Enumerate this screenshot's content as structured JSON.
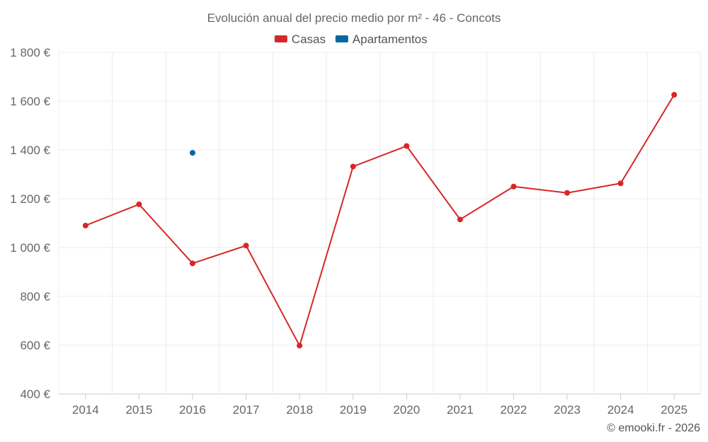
{
  "chart_data": {
    "type": "line",
    "title": "Evolución anual del precio medio por m² - 46 - Concots",
    "categories": [
      "2014",
      "2015",
      "2016",
      "2017",
      "2018",
      "2019",
      "2020",
      "2021",
      "2022",
      "2023",
      "2024",
      "2025"
    ],
    "series": [
      {
        "name": "Casas",
        "color": "#d62728",
        "values": [
          1090,
          1177,
          935,
          1008,
          598,
          1332,
          1416,
          1115,
          1250,
          1224,
          1263,
          1626
        ]
      },
      {
        "name": "Apartamentos",
        "color": "#0a66a0",
        "values": [
          null,
          null,
          1388,
          null,
          null,
          null,
          null,
          null,
          null,
          null,
          null,
          null
        ]
      }
    ],
    "ylim": [
      400,
      1800
    ],
    "yticks": [
      400,
      600,
      800,
      1000,
      1200,
      1400,
      1600,
      1800
    ],
    "ytick_labels": [
      "400 €",
      "600 €",
      "800 €",
      "1 000 €",
      "1 200 €",
      "1 400 €",
      "1 600 €",
      "1 800 €"
    ],
    "xlabel": "",
    "ylabel": "",
    "grid": true,
    "legend_position": "top-center"
  },
  "credit": "© emooki.fr - 2026"
}
